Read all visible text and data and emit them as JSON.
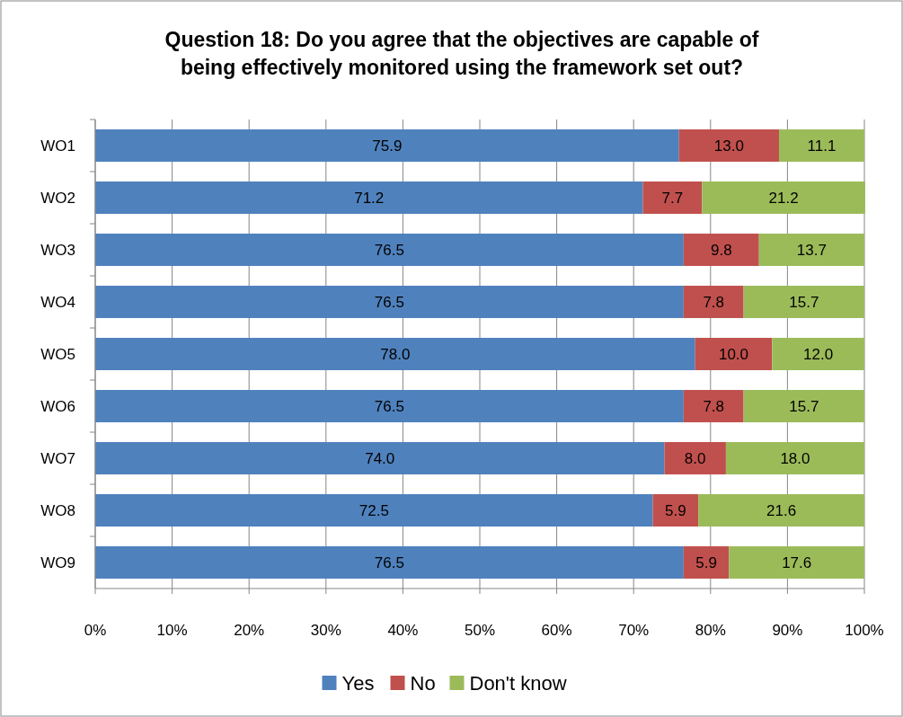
{
  "chart_data": {
    "type": "bar",
    "orientation": "horizontal",
    "stacked": true,
    "title": "Question 18:  Do you agree that the objectives are capable of being effectively monitored using the framework set out?",
    "categories": [
      "WO1",
      "WO2",
      "WO3",
      "WO4",
      "WO5",
      "WO6",
      "WO7",
      "WO8",
      "WO9"
    ],
    "series": [
      {
        "name": "Yes",
        "color": "#4f81bd",
        "values": [
          75.9,
          71.2,
          76.5,
          76.5,
          78.0,
          76.5,
          74.0,
          72.5,
          76.5
        ],
        "value_labels": [
          "75.9",
          "71.2",
          "76.5",
          "76.5",
          "78.0",
          "76.5",
          "74.0",
          "72.5",
          "76.5"
        ]
      },
      {
        "name": "No",
        "color": "#c0504d",
        "values": [
          13.0,
          7.7,
          9.8,
          7.8,
          10.0,
          7.8,
          8.0,
          5.9,
          5.9
        ],
        "value_labels": [
          "13.0",
          "7.7",
          "9.8",
          "7.8",
          "10.0",
          "7.8",
          "8.0",
          "5.9",
          "5.9"
        ]
      },
      {
        "name": "Don't know",
        "color": "#9bbb59",
        "values": [
          11.1,
          21.2,
          13.7,
          15.7,
          12.0,
          15.7,
          18.0,
          21.6,
          17.6
        ],
        "value_labels": [
          "11.1",
          "21.2",
          "13.7",
          "15.7",
          "12.0",
          "15.7",
          "18.0",
          "21.6",
          "17.6"
        ]
      }
    ],
    "xlim": [
      0,
      100
    ],
    "xticks": [
      {
        "value": 0,
        "label": "0%"
      },
      {
        "value": 10,
        "label": "10%"
      },
      {
        "value": 20,
        "label": "20%"
      },
      {
        "value": 30,
        "label": "30%"
      },
      {
        "value": 40,
        "label": "40%"
      },
      {
        "value": 50,
        "label": "50%"
      },
      {
        "value": 60,
        "label": "60%"
      },
      {
        "value": 70,
        "label": "70%"
      },
      {
        "value": 80,
        "label": "80%"
      },
      {
        "value": 90,
        "label": "90%"
      },
      {
        "value": 100,
        "label": "100%"
      }
    ],
    "grid": "x",
    "legend": "bottom"
  }
}
